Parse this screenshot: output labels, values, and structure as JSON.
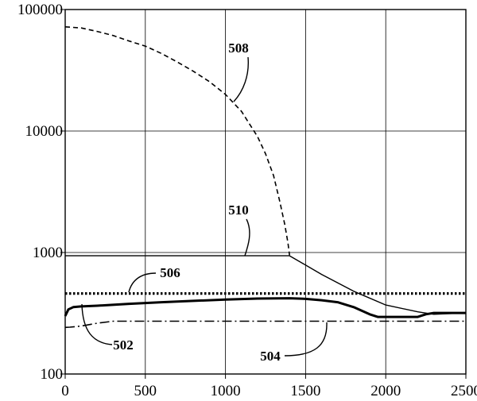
{
  "chart_data": {
    "type": "line",
    "title": "",
    "xlabel": "",
    "ylabel": "",
    "xlim": [
      0,
      2500
    ],
    "ylim": [
      100,
      100000
    ],
    "y_scale": "log",
    "grid": true,
    "x_ticks": [
      "0",
      "500",
      "1000",
      "1500",
      "2000",
      "2500"
    ],
    "y_ticks": [
      "100",
      "1000",
      "10000",
      "100000"
    ],
    "series": [
      {
        "id": "508",
        "style": "dashed",
        "x": [
          0,
          100,
          200,
          300,
          400,
          500,
          600,
          700,
          800,
          900,
          1000,
          1100,
          1200,
          1250,
          1300,
          1340,
          1370,
          1390,
          1400
        ],
        "y": [
          72000,
          70500,
          66000,
          61000,
          55000,
          50000,
          43500,
          37000,
          31000,
          25500,
          20000,
          14500,
          9000,
          6500,
          4300,
          2600,
          1700,
          1200,
          950
        ]
      },
      {
        "id": "510",
        "style": "solid",
        "x": [
          0,
          1400,
          1600,
          1800,
          2000,
          2200,
          2300,
          2500
        ],
        "y": [
          940,
          940,
          660,
          480,
          370,
          325,
          310,
          318
        ]
      },
      {
        "id": "506",
        "style": "dotted",
        "x": [
          0,
          2500
        ],
        "y": [
          460,
          460
        ]
      },
      {
        "id": "502",
        "style": "solid-thick",
        "x": [
          0,
          20,
          50,
          100,
          200,
          400,
          600,
          800,
          1000,
          1200,
          1400,
          1500,
          1600,
          1700,
          1800,
          1900,
          1950,
          2100,
          2200,
          2250,
          2300,
          2500
        ],
        "y": [
          300,
          340,
          355,
          360,
          365,
          378,
          390,
          400,
          410,
          418,
          420,
          415,
          405,
          390,
          355,
          310,
          295,
          295,
          295,
          310,
          318,
          318
        ]
      },
      {
        "id": "504",
        "style": "dash-dot",
        "x": [
          0,
          30,
          100,
          200,
          300,
          500,
          2500
        ],
        "y": [
          242,
          243,
          248,
          262,
          272,
          272,
          272
        ]
      }
    ],
    "annotations": [
      {
        "text": "508",
        "series": "508"
      },
      {
        "text": "510",
        "series": "510"
      },
      {
        "text": "506",
        "series": "506"
      },
      {
        "text": "502",
        "series": "502"
      },
      {
        "text": "504",
        "series": "504"
      }
    ]
  }
}
